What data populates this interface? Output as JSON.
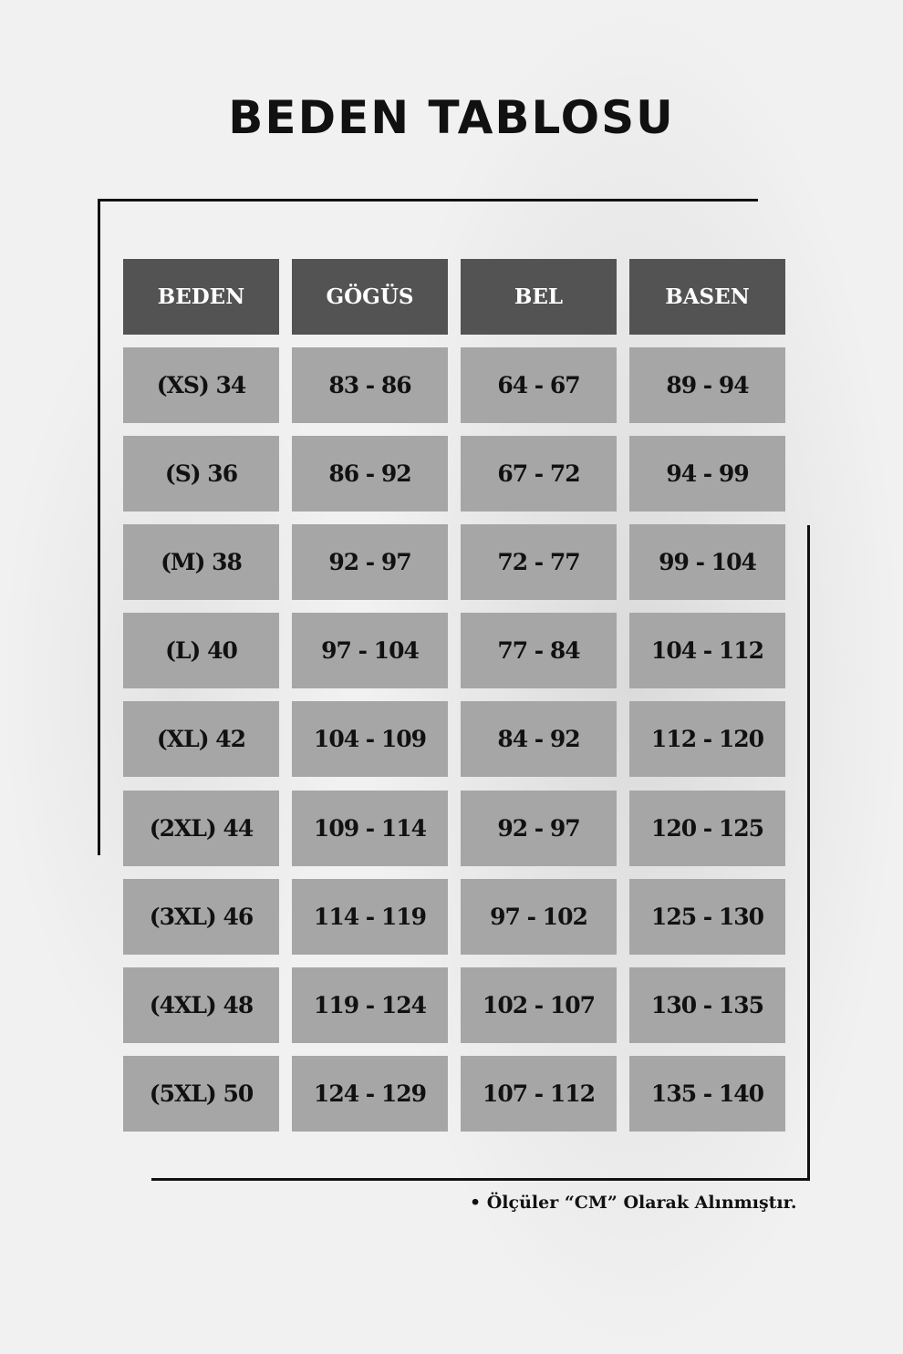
{
  "title": "BEDEN TABLOSU",
  "table": {
    "headers": [
      "BEDEN",
      "GÖGÜS",
      "BEL",
      "BASEN"
    ],
    "rows": [
      [
        "(XS) 34",
        "83 - 86",
        "64 - 67",
        "89 - 94"
      ],
      [
        "(S) 36",
        "86 - 92",
        "67 - 72",
        "94 - 99"
      ],
      [
        "(M) 38",
        "92 - 97",
        "72 - 77",
        "99 - 104"
      ],
      [
        "(L) 40",
        "97 - 104",
        "77 - 84",
        "104 - 112"
      ],
      [
        "(XL) 42",
        "104 - 109",
        "84 - 92",
        "112 - 120"
      ],
      [
        "(2XL) 44",
        "109 - 114",
        "92 - 97",
        "120 - 125"
      ],
      [
        "(3XL) 46",
        "114 - 119",
        "97 - 102",
        "125 - 130"
      ],
      [
        "(4XL) 48",
        "119 - 124",
        "102 - 107",
        "130 - 135"
      ],
      [
        "(5XL) 50",
        "124 - 129",
        "107 - 112",
        "135 - 140"
      ]
    ]
  },
  "note": "• Ölçüler “CM” Olarak Alınmıştır.",
  "colors": {
    "header_bg": "#535353",
    "cell_bg": "#a6a6a6",
    "background": "#f1f1f1"
  }
}
